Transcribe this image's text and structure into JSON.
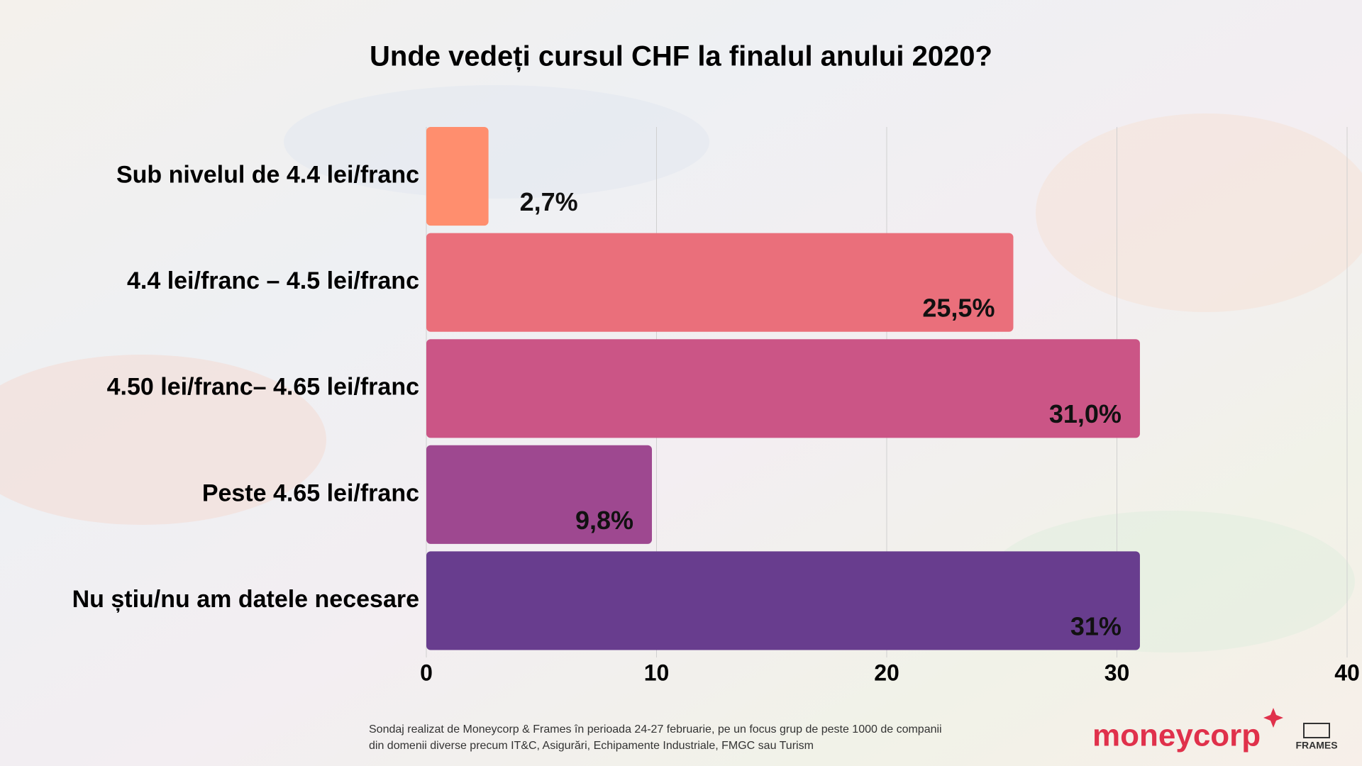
{
  "chart_data": {
    "type": "bar",
    "orientation": "horizontal",
    "title": "Unde vedeți cursul CHF la finalul anului 2020?",
    "categories": [
      "Sub nivelul de 4.4 lei/franc",
      "4.4 lei/franc – 4.5 lei/franc",
      "4.50 lei/franc– 4.65 lei/franc",
      "Peste 4.65 lei/franc",
      "Nu știu/nu am datele necesare"
    ],
    "values": [
      2.7,
      25.5,
      31.0,
      9.8,
      31
    ],
    "value_labels": [
      "2,7%",
      "25,5%",
      "31,0%",
      "9,8%",
      "31%"
    ],
    "colors": [
      "#ff8e6e",
      "#ea6f7b",
      "#cb5586",
      "#9e4890",
      "#683d8e"
    ],
    "xlim": [
      0,
      40
    ],
    "xticks": [
      0,
      10,
      20,
      30,
      40
    ],
    "grid": true
  },
  "footer": {
    "note": [
      "Sondaj realizat de Moneycorp & Frames  în perioada 24-27 februarie, pe un focus grup de peste 1000 de companii",
      "din domenii diverse precum IT&C, Asigurări, Echipamente Industriale, FMGC sau Turism"
    ],
    "logos": [
      "moneycorp",
      "FRAMES"
    ]
  }
}
